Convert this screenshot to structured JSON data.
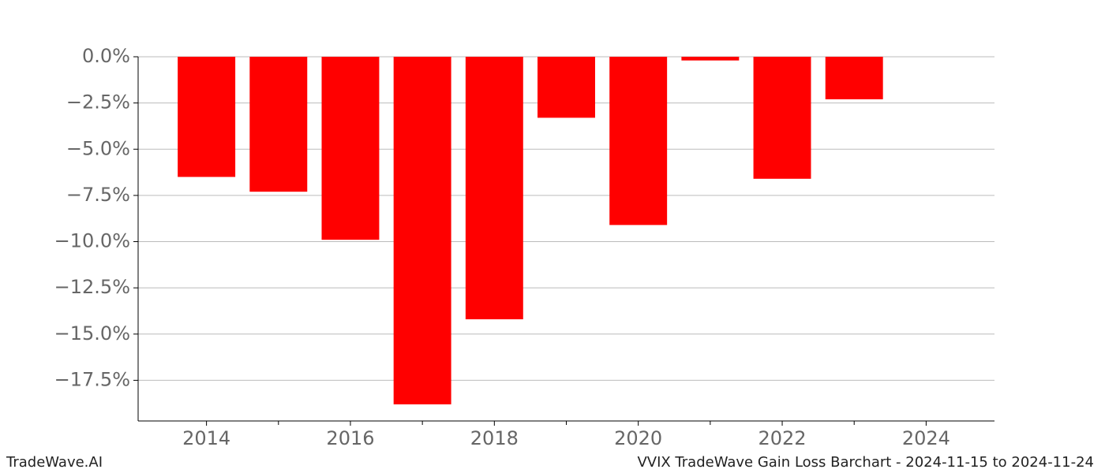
{
  "chart_data": {
    "type": "bar",
    "title": "VVIX TradeWave Gain Loss Barchart - 2024-11-15 to 2024-11-24",
    "watermark": "TradeWave.AI",
    "x": [
      2014,
      2015,
      2016,
      2017,
      2018,
      2019,
      2020,
      2021,
      2022,
      2023
    ],
    "values": [
      -6.5,
      -7.3,
      -9.9,
      -18.8,
      -14.2,
      -3.3,
      -9.1,
      -0.2,
      -6.6,
      -2.3
    ],
    "color": "#ff0000",
    "xlim": [
      2013.05,
      2024.95
    ],
    "xticks": [
      2014,
      2016,
      2018,
      2020,
      2022,
      2024
    ],
    "xticks_minor": [
      2015,
      2017,
      2019,
      2021,
      2023
    ],
    "ylim": [
      -19.7,
      0
    ],
    "yticks": [
      {
        "value": 0,
        "label": "0.0%"
      },
      {
        "value": -2.5,
        "label": "−2.5%"
      },
      {
        "value": -5,
        "label": "−5.0%"
      },
      {
        "value": -7.5,
        "label": "−7.5%"
      },
      {
        "value": -10,
        "label": "−10.0%"
      },
      {
        "value": -12.5,
        "label": "−12.5%"
      },
      {
        "value": -15,
        "label": "−15.0%"
      },
      {
        "value": -17.5,
        "label": "−17.5%"
      }
    ],
    "grid": true
  }
}
